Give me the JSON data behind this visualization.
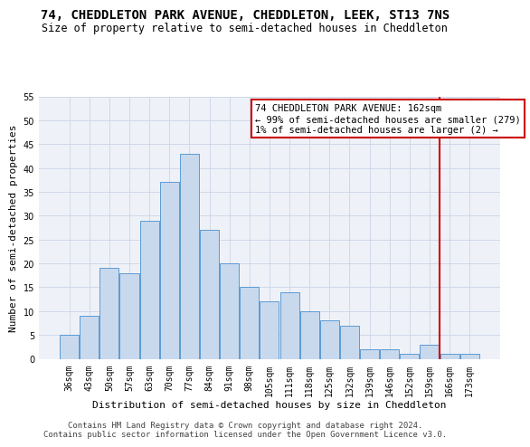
{
  "title": "74, CHEDDLETON PARK AVENUE, CHEDDLETON, LEEK, ST13 7NS",
  "subtitle": "Size of property relative to semi-detached houses in Cheddleton",
  "xlabel": "Distribution of semi-detached houses by size in Cheddleton",
  "ylabel": "Number of semi-detached properties",
  "bar_labels": [
    "36sqm",
    "43sqm",
    "50sqm",
    "57sqm",
    "63sqm",
    "70sqm",
    "77sqm",
    "84sqm",
    "91sqm",
    "98sqm",
    "105sqm",
    "111sqm",
    "118sqm",
    "125sqm",
    "132sqm",
    "139sqm",
    "146sqm",
    "152sqm",
    "159sqm",
    "166sqm",
    "173sqm"
  ],
  "bar_values": [
    5,
    9,
    19,
    18,
    29,
    37,
    43,
    27,
    20,
    15,
    12,
    14,
    10,
    8,
    7,
    2,
    2,
    1,
    3,
    1,
    1
  ],
  "bar_color": "#c9d9ed",
  "bar_edge_color": "#5b9bd5",
  "grid_color": "#d0d8e8",
  "bg_color": "#eef2f8",
  "ylim": [
    0,
    55
  ],
  "yticks": [
    0,
    5,
    10,
    15,
    20,
    25,
    30,
    35,
    40,
    45,
    50,
    55
  ],
  "annotation_text": "74 CHEDDLETON PARK AVENUE: 162sqm\n← 99% of semi-detached houses are smaller (279)\n1% of semi-detached houses are larger (2) →",
  "vline_x": 18.5,
  "vline_color": "#cc0000",
  "box_color": "#cc0000",
  "footer": "Contains HM Land Registry data © Crown copyright and database right 2024.\nContains public sector information licensed under the Open Government Licence v3.0.",
  "title_fontsize": 10,
  "subtitle_fontsize": 8.5,
  "xlabel_fontsize": 8,
  "ylabel_fontsize": 8,
  "tick_fontsize": 7,
  "annotation_fontsize": 7.5,
  "footer_fontsize": 6.5
}
